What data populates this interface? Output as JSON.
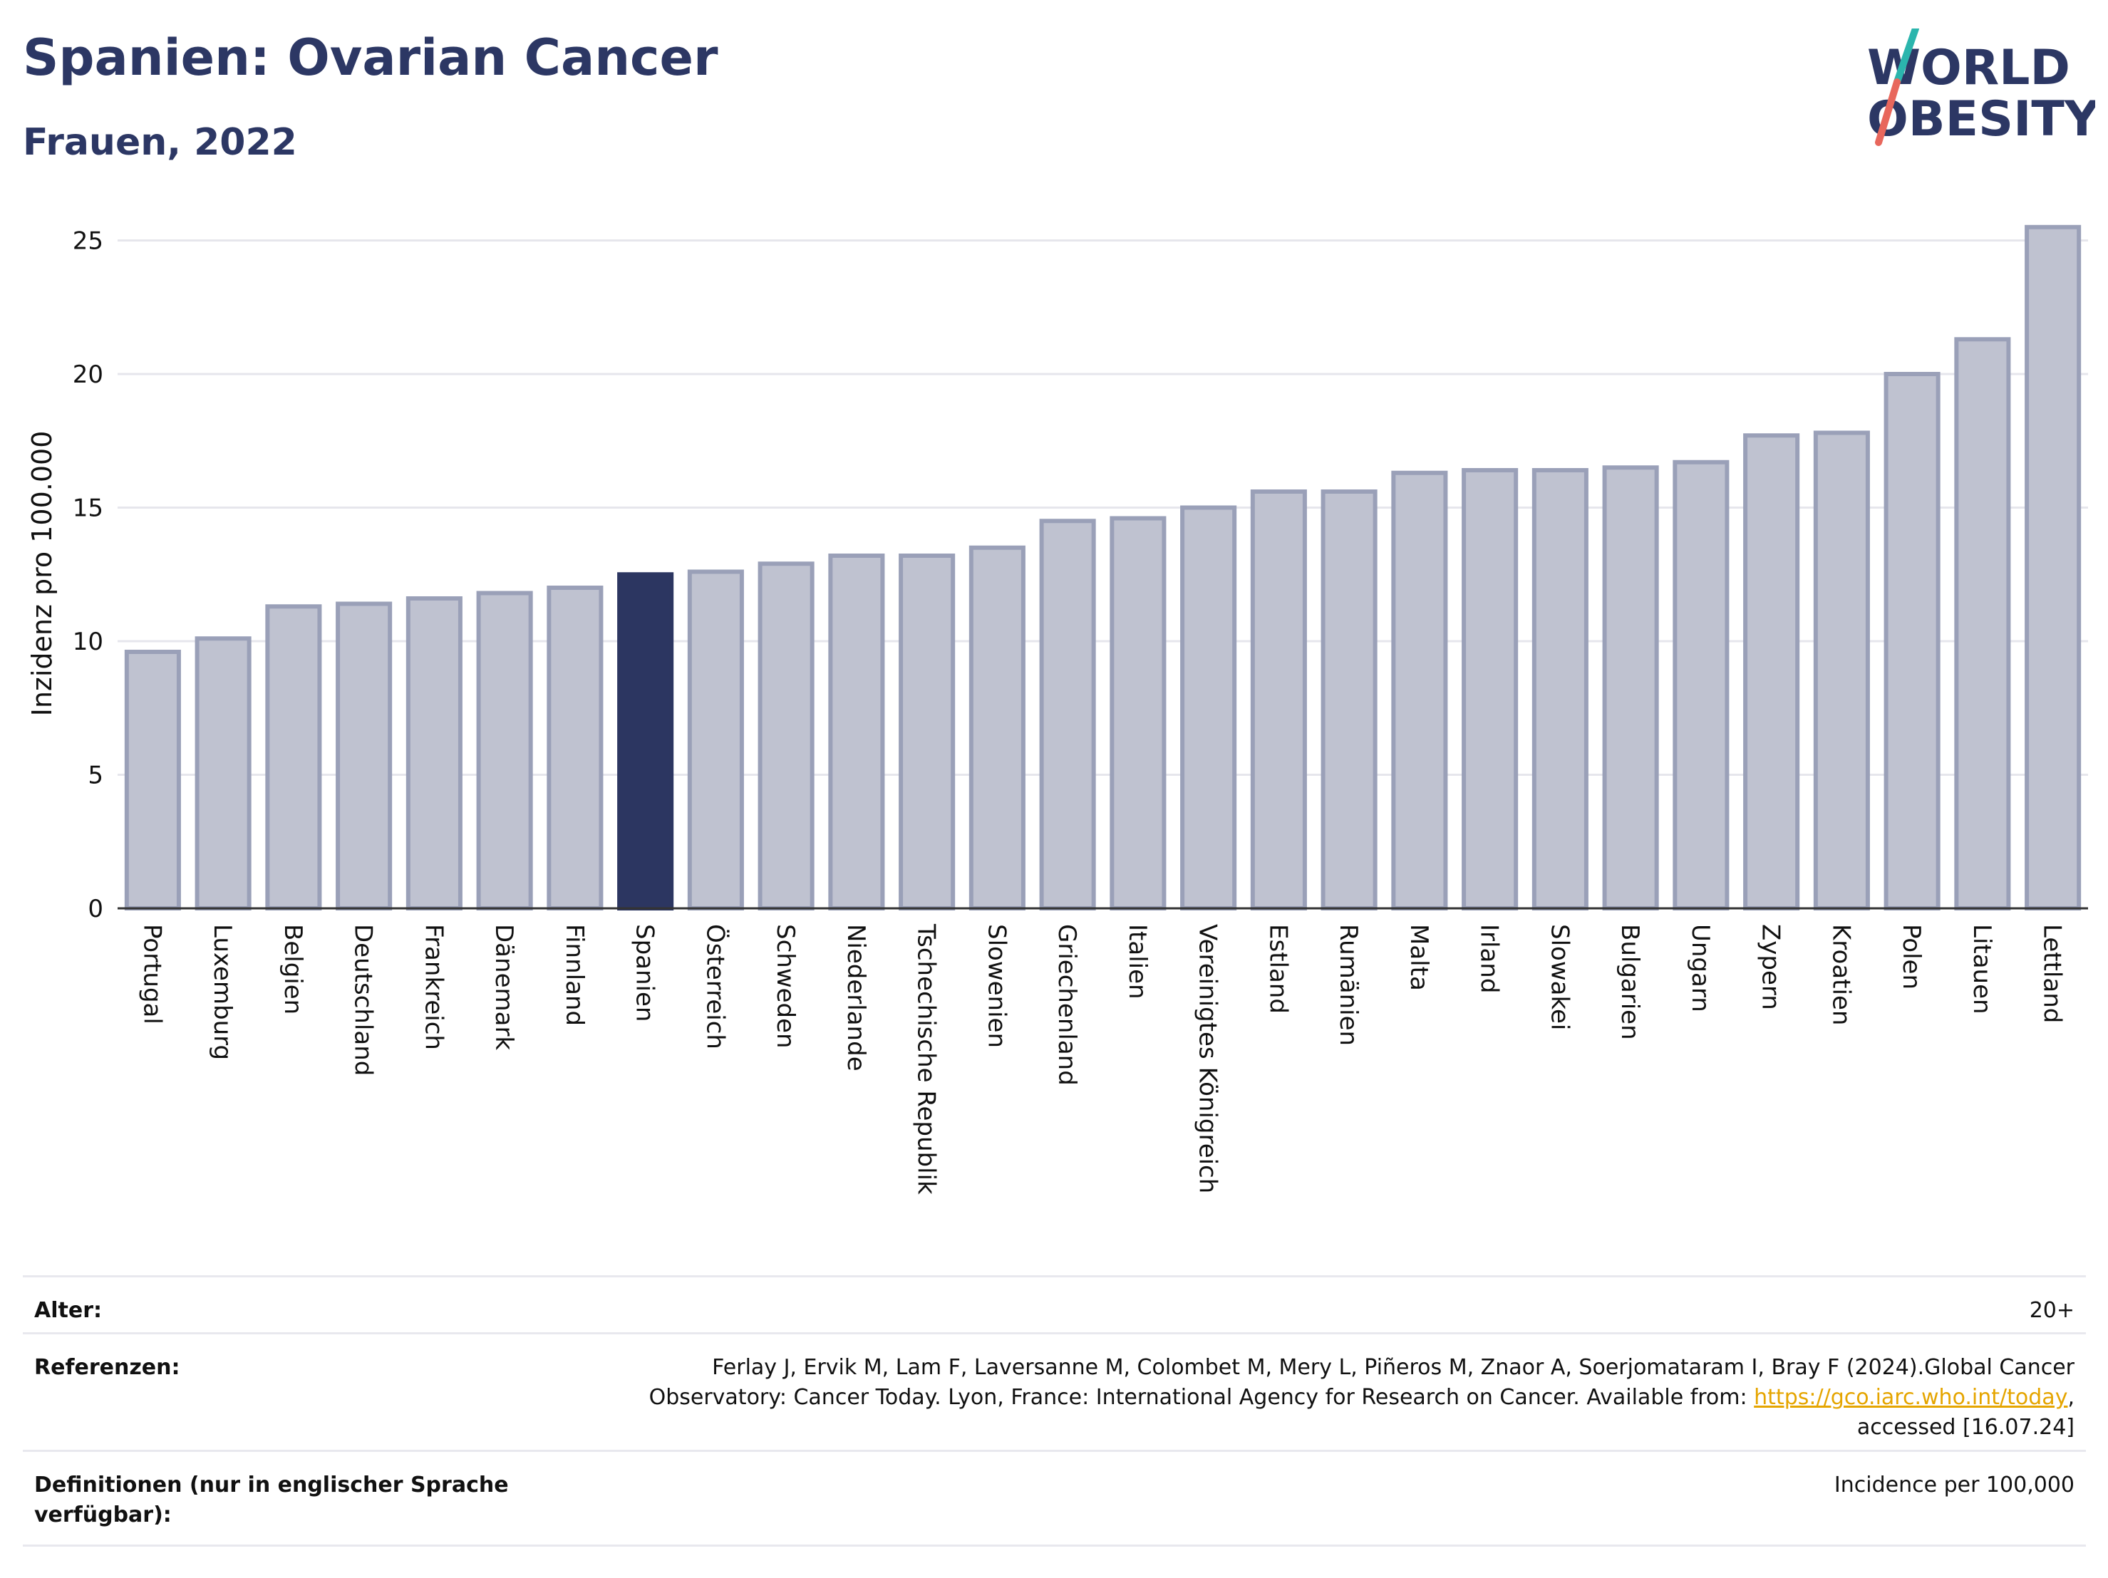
{
  "header": {
    "title": "Spanien: Ovarian Cancer",
    "subtitle": "Frauen, 2022"
  },
  "logo": {
    "line1": "WORLD",
    "line2": "OBESITY",
    "accent_colors": [
      "#2bb5ad",
      "#e8675c"
    ]
  },
  "chart_data": {
    "type": "bar",
    "title": "Spanien: Ovarian Cancer",
    "subtitle": "Frauen, 2022",
    "xlabel": "",
    "ylabel": "Inzidenz pro 100.000",
    "ylim": [
      0,
      26
    ],
    "yticks": [
      0,
      5,
      10,
      15,
      20,
      25
    ],
    "grid": true,
    "highlight": "Spanien",
    "colors": {
      "default": "#bfc2d0",
      "border": "#9aa0b8",
      "highlight": "#2c3661"
    },
    "categories": [
      "Portugal",
      "Luxemburg",
      "Belgien",
      "Deutschland",
      "Frankreich",
      "Dänemark",
      "Finnland",
      "Spanien",
      "Österreich",
      "Schweden",
      "Niederlande",
      "Tschechische Republik",
      "Slowenien",
      "Griechenland",
      "Italien",
      "Vereinigtes Königreich",
      "Estland",
      "Rumänien",
      "Malta",
      "Irland",
      "Slowakei",
      "Bulgarien",
      "Ungarn",
      "Zypern",
      "Kroatien",
      "Polen",
      "Litauen",
      "Lettland"
    ],
    "values": [
      9.6,
      10.1,
      11.3,
      11.4,
      11.6,
      11.8,
      12.0,
      12.5,
      12.6,
      12.9,
      13.2,
      13.2,
      13.5,
      14.5,
      14.6,
      15.0,
      15.6,
      15.6,
      16.3,
      16.4,
      16.4,
      16.5,
      16.7,
      17.7,
      17.8,
      20.0,
      21.3,
      25.5
    ]
  },
  "meta": {
    "age_label": "Alter:",
    "age_value": "20+",
    "ref_label": "Referenzen:",
    "ref_line1": "Ferlay J, Ervik M, Lam F, Laversanne M, Colombet M, Mery L, Piñeros M, Znaor A, Soerjomataram I, Bray F (2024).Global Cancer",
    "ref_line2_pre": "Observatory: Cancer Today. Lyon, France: International Agency for Research on Cancer. Available from: ",
    "ref_link": "https://gco.iarc.who.int/today",
    "ref_line2_post": ",",
    "ref_line3": "accessed [16.07.24]",
    "def_label_line1": "Definitionen (nur in englischer Sprache",
    "def_label_line2": "verfügbar):",
    "def_value": "Incidence per 100,000"
  }
}
